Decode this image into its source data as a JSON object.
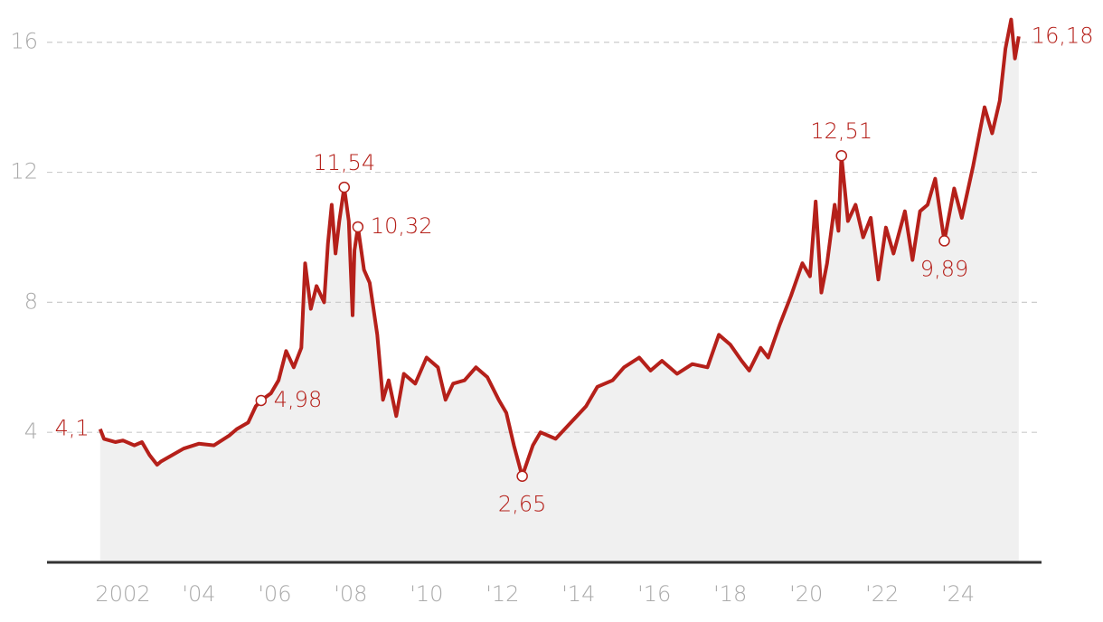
{
  "chart_data": {
    "type": "line",
    "color": "#b5201a",
    "area_color": "#f0f0f0",
    "grid": true,
    "xlim": [
      2000,
      2026.2
    ],
    "ylim": [
      0,
      17.3
    ],
    "yticks": [
      4,
      8,
      12,
      16
    ],
    "xticks": [
      {
        "value": 2002,
        "label": "2002"
      },
      {
        "value": 2004,
        "label": "'04"
      },
      {
        "value": 2006,
        "label": "'06"
      },
      {
        "value": 2008,
        "label": "'08"
      },
      {
        "value": 2010,
        "label": "'10"
      },
      {
        "value": 2012,
        "label": "'12"
      },
      {
        "value": 2014,
        "label": "'14"
      },
      {
        "value": 2016,
        "label": "'16"
      },
      {
        "value": 2018,
        "label": "'18"
      },
      {
        "value": 2020,
        "label": "'20"
      },
      {
        "value": 2022,
        "label": "'22"
      },
      {
        "value": 2024,
        "label": "'24"
      }
    ],
    "x": [
      2001.4,
      2001.5,
      2001.8,
      2002.0,
      2002.3,
      2002.5,
      2002.7,
      2002.9,
      2003.0,
      2003.3,
      2003.6,
      2004.0,
      2004.4,
      2004.8,
      2005.0,
      2005.3,
      2005.5,
      2005.64,
      2005.9,
      2006.1,
      2006.3,
      2006.5,
      2006.7,
      2006.8,
      2006.95,
      2007.1,
      2007.3,
      2007.4,
      2007.5,
      2007.6,
      2007.7,
      2007.83,
      2007.95,
      2008.05,
      2008.1,
      2008.19,
      2008.35,
      2008.5,
      2008.7,
      2008.85,
      2009.0,
      2009.2,
      2009.4,
      2009.7,
      2010.0,
      2010.3,
      2010.5,
      2010.7,
      2011.0,
      2011.3,
      2011.6,
      2011.9,
      2012.1,
      2012.3,
      2012.52,
      2012.8,
      2013.0,
      2013.4,
      2013.8,
      2014.2,
      2014.5,
      2014.9,
      2015.2,
      2015.6,
      2015.9,
      2016.2,
      2016.6,
      2017.0,
      2017.4,
      2017.7,
      2018.0,
      2018.3,
      2018.5,
      2018.8,
      2019.0,
      2019.3,
      2019.6,
      2019.9,
      2020.1,
      2020.25,
      2020.4,
      2020.55,
      2020.75,
      2020.85,
      2020.93,
      2021.1,
      2021.3,
      2021.5,
      2021.7,
      2021.9,
      2022.1,
      2022.3,
      2022.6,
      2022.8,
      2023.0,
      2023.2,
      2023.4,
      2023.55,
      2023.64,
      2023.9,
      2024.1,
      2024.4,
      2024.7,
      2024.9,
      2025.1,
      2025.25,
      2025.4,
      2025.5,
      2025.6
    ],
    "values": [
      4.1,
      3.8,
      3.7,
      3.75,
      3.6,
      3.7,
      3.3,
      3.0,
      3.1,
      3.3,
      3.5,
      3.65,
      3.6,
      3.9,
      4.1,
      4.3,
      4.8,
      4.98,
      5.2,
      5.6,
      6.5,
      6.0,
      6.6,
      9.2,
      7.8,
      8.5,
      8.0,
      9.8,
      11.0,
      9.5,
      10.5,
      11.54,
      10.5,
      7.6,
      9.6,
      10.32,
      9.0,
      8.6,
      7.0,
      5.0,
      5.6,
      4.5,
      5.8,
      5.5,
      6.3,
      6.0,
      5.0,
      5.5,
      5.6,
      6.0,
      5.7,
      5.0,
      4.6,
      3.6,
      2.65,
      3.6,
      4.0,
      3.8,
      4.3,
      4.8,
      5.4,
      5.6,
      6.0,
      6.3,
      5.9,
      6.2,
      5.8,
      6.1,
      6.0,
      7.0,
      6.7,
      6.2,
      5.9,
      6.6,
      6.3,
      7.3,
      8.2,
      9.2,
      8.8,
      11.1,
      8.3,
      9.2,
      11.0,
      10.2,
      12.51,
      10.5,
      11.0,
      10.0,
      10.6,
      8.7,
      10.3,
      9.5,
      10.8,
      9.3,
      10.8,
      11.0,
      11.8,
      10.6,
      9.89,
      11.5,
      10.6,
      12.2,
      14.0,
      13.2,
      14.2,
      15.8,
      16.7,
      15.5,
      16.18
    ],
    "annotations": [
      {
        "x": 2001.4,
        "value": 4.1,
        "label": "4,1",
        "position": "left",
        "marker": false
      },
      {
        "x": 2005.64,
        "value": 4.98,
        "label": "4,98",
        "position": "right",
        "marker": true
      },
      {
        "x": 2007.83,
        "value": 11.54,
        "label": "11,54",
        "position": "above",
        "marker": true
      },
      {
        "x": 2008.19,
        "value": 10.32,
        "label": "10,32",
        "position": "right",
        "marker": true
      },
      {
        "x": 2012.52,
        "value": 2.65,
        "label": "2,65",
        "position": "below",
        "marker": true
      },
      {
        "x": 2020.93,
        "value": 12.51,
        "label": "12,51",
        "position": "above",
        "marker": true
      },
      {
        "x": 2023.64,
        "value": 9.89,
        "label": "9,89",
        "position": "below",
        "marker": true
      },
      {
        "x": 2025.6,
        "value": 16.18,
        "label": "16,18",
        "position": "right",
        "marker": false
      }
    ]
  }
}
